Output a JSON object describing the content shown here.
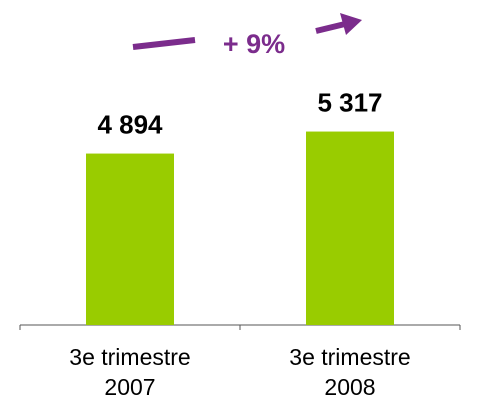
{
  "chart_data": {
    "type": "bar",
    "categories": [
      "3e trimestre 2007",
      "3e trimestre 2008"
    ],
    "values": [
      4894,
      5317
    ],
    "value_labels": [
      "4 894",
      "5 317"
    ],
    "color": "#99cc00",
    "annotation": "+ 9%",
    "ylim": [
      1600,
      6000
    ]
  }
}
